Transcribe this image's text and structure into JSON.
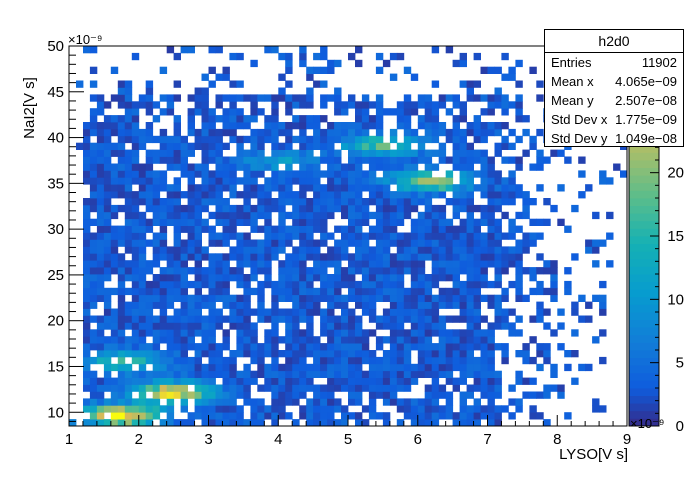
{
  "chart_data": {
    "type": "heatmap",
    "histogram_name": "h2d0",
    "xlabel": "LYSO[V s]",
    "ylabel": "NaI2[V s]",
    "x_exponent_label": "×10⁻⁹",
    "y_exponent_label": "×10⁻⁹",
    "xlim": [
      1,
      9
    ],
    "ylim": [
      8.5,
      50
    ],
    "x_ticks": [
      1,
      2,
      3,
      4,
      5,
      6,
      7,
      8,
      9
    ],
    "y_ticks": [
      10,
      15,
      20,
      25,
      30,
      35,
      40,
      45,
      50
    ],
    "colorbar_ticks": [
      0,
      5,
      10,
      15,
      20,
      25
    ],
    "colorbar_max": 30,
    "stats": {
      "title": "h2d0",
      "rows": [
        {
          "key": "Entries",
          "value": "11902"
        },
        {
          "key": "Mean x",
          "value": "4.065e−09"
        },
        {
          "key": "Mean y",
          "value": "2.507e−08"
        },
        {
          "key": "Std Dev x",
          "value": "1.775e−09"
        },
        {
          "key": "Std Dev y",
          "value": "1.049e−08"
        }
      ]
    },
    "hotspots": [
      {
        "x": 1.75,
        "y": 9.7,
        "intensity": 30
      },
      {
        "x": 2.5,
        "y": 12.2,
        "intensity": 28
      },
      {
        "x": 1.8,
        "y": 15.6,
        "intensity": 15
      },
      {
        "x": 5.5,
        "y": 39.2,
        "intensity": 18
      },
      {
        "x": 6.2,
        "y": 35.3,
        "intensity": 22
      },
      {
        "x": 4.0,
        "y": 37.5,
        "intensity": 9
      }
    ]
  }
}
